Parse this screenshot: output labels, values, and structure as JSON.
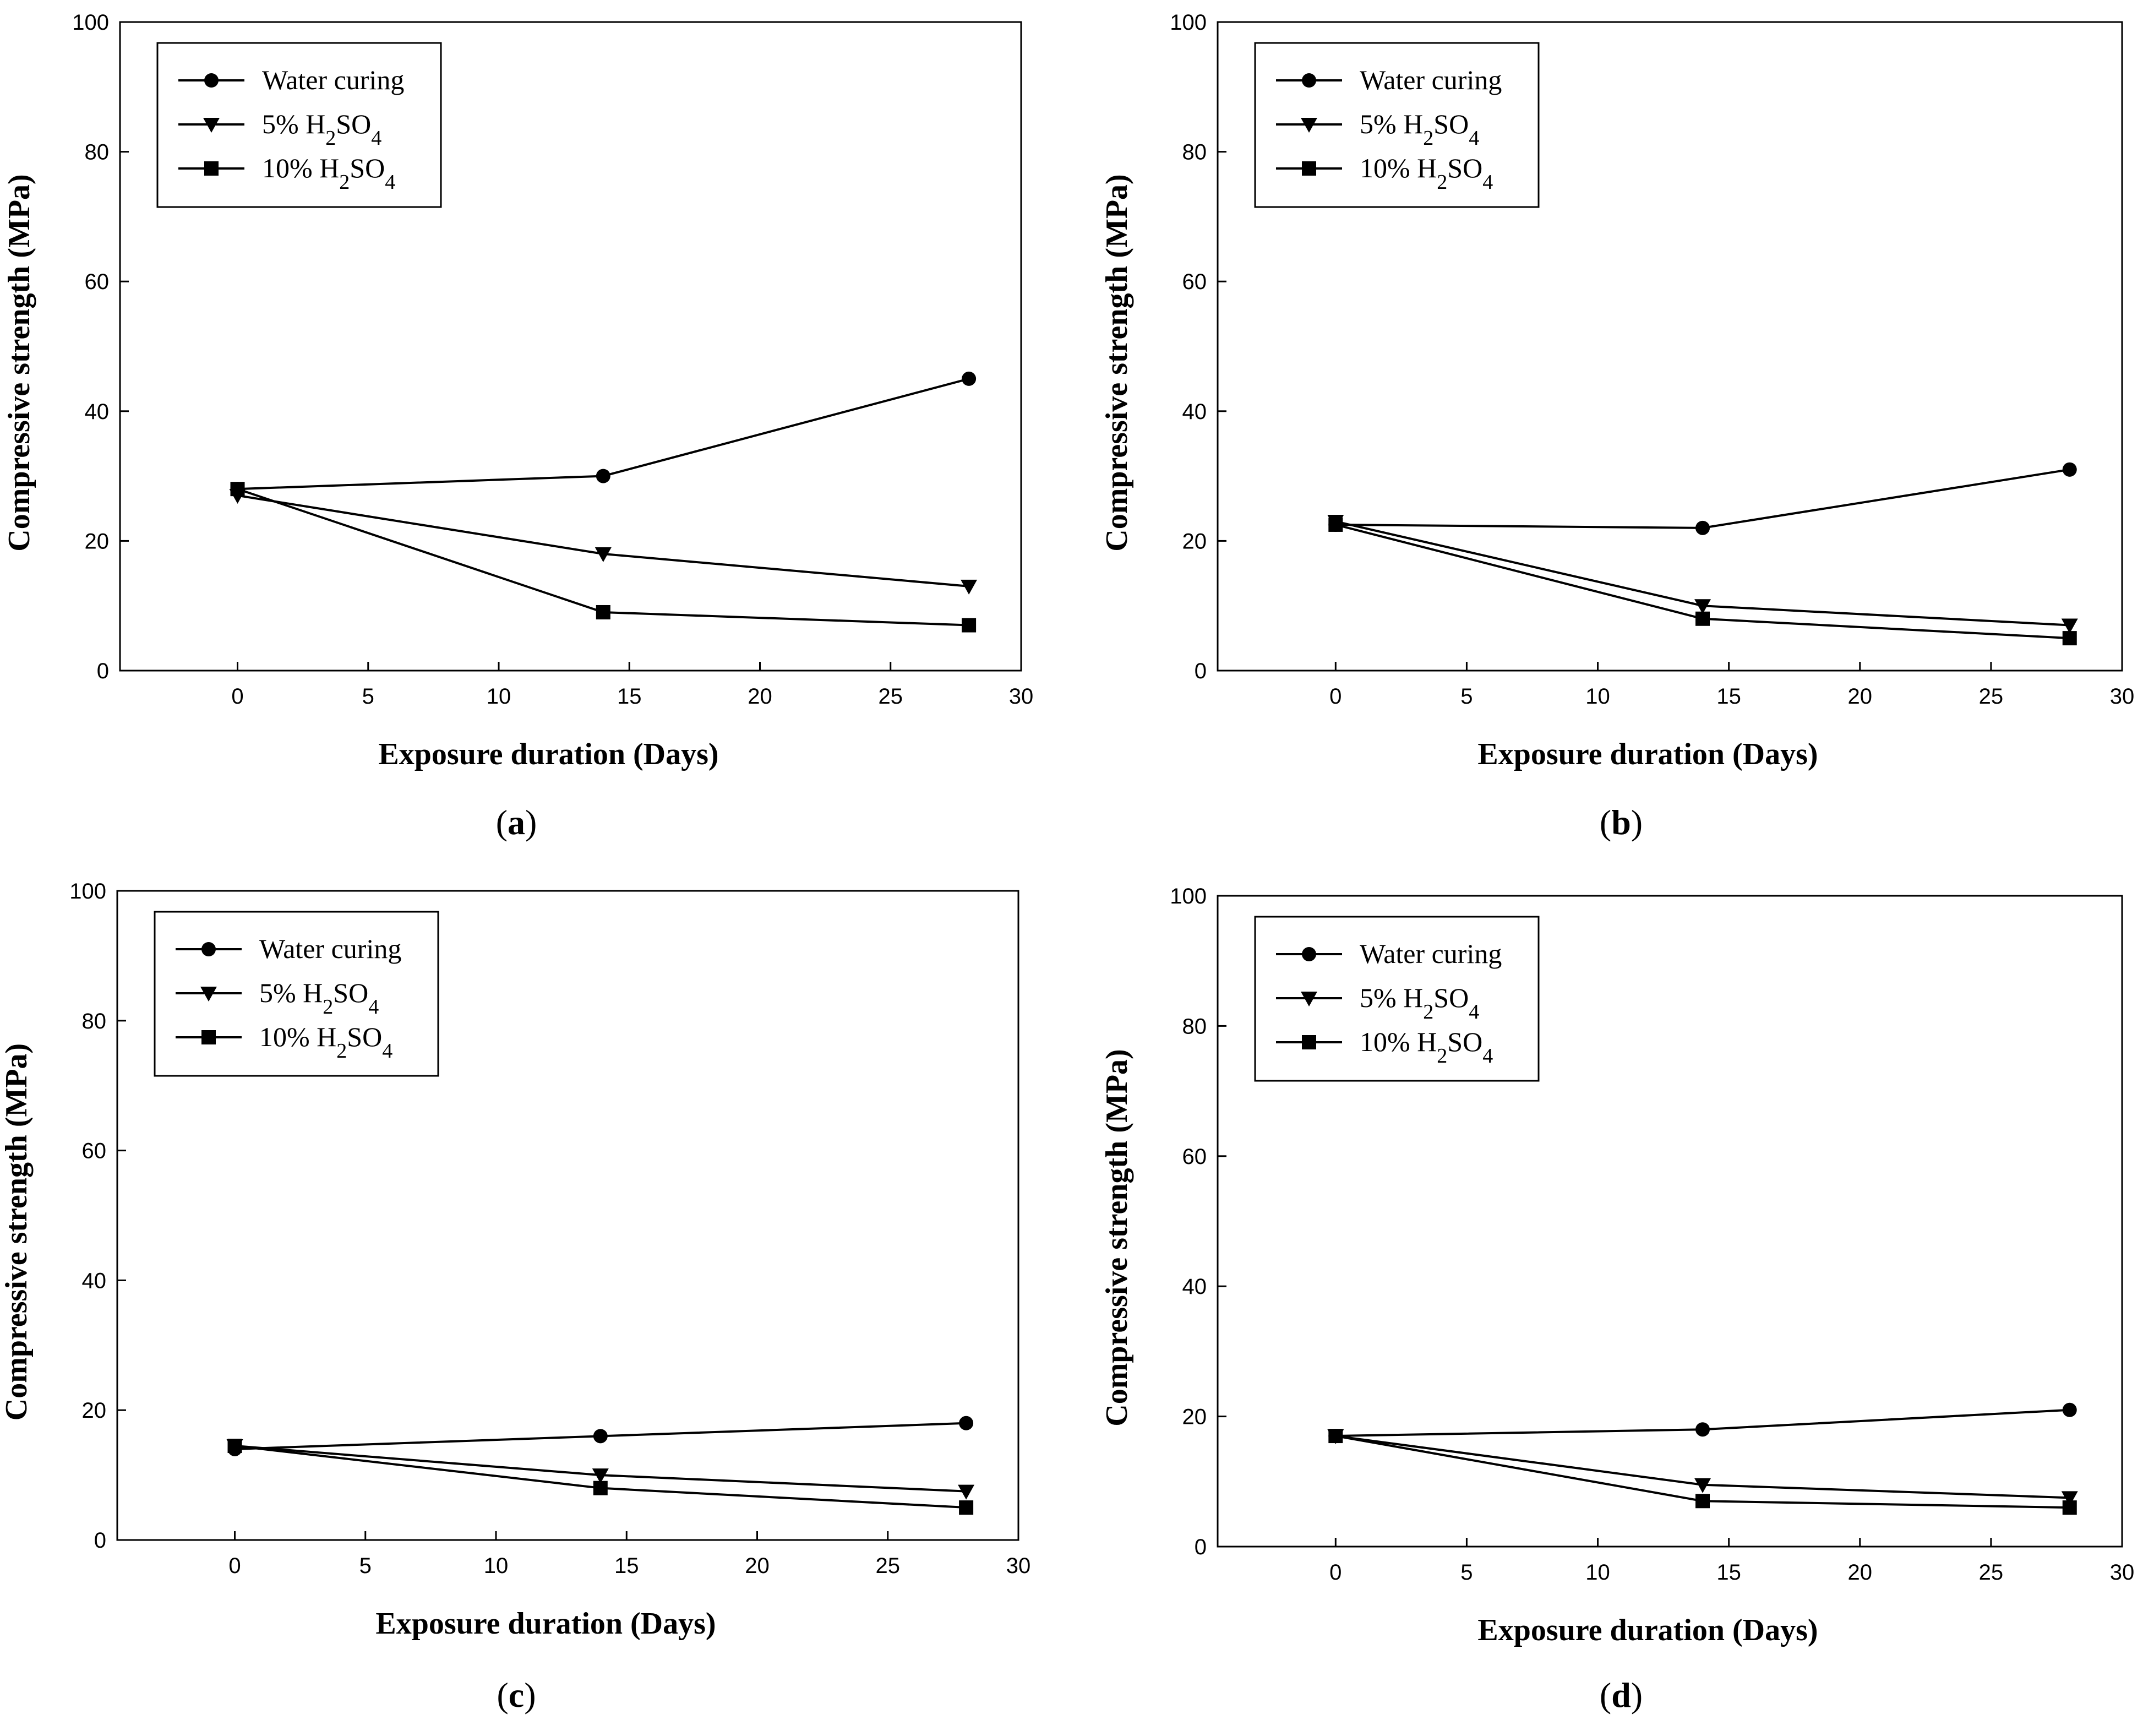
{
  "chart_data": [
    {
      "type": "line",
      "panel_label": "a",
      "xlabel": "Exposure duration (Days)",
      "ylabel": "Compressive strength (MPa)",
      "xlim": [
        -4.5,
        30
      ],
      "ylim": [
        0,
        100
      ],
      "xticks": [
        0,
        5,
        10,
        15,
        20,
        25,
        30
      ],
      "yticks": [
        0,
        20,
        40,
        60,
        80,
        100
      ],
      "legend_position": "top-left",
      "grid": false,
      "x": [
        0,
        14,
        28
      ],
      "series": [
        {
          "name": "Water curing",
          "marker": "circle",
          "values": [
            28,
            30,
            45
          ]
        },
        {
          "name": "5% H2SO4",
          "marker": "triangle-down",
          "values": [
            27,
            18,
            13
          ]
        },
        {
          "name": "10% H2SO4",
          "marker": "square",
          "values": [
            28,
            9,
            7
          ]
        }
      ]
    },
    {
      "type": "line",
      "panel_label": "b",
      "xlabel": "Exposure duration (Days)",
      "ylabel": "Compressive strength (MPa)",
      "xlim": [
        -4.5,
        30
      ],
      "ylim": [
        0,
        100
      ],
      "xticks": [
        0,
        5,
        10,
        15,
        20,
        25,
        30
      ],
      "yticks": [
        0,
        20,
        40,
        60,
        80,
        100
      ],
      "legend_position": "top-left",
      "grid": false,
      "x": [
        0,
        14,
        28
      ],
      "series": [
        {
          "name": "Water curing",
          "marker": "circle",
          "values": [
            22.5,
            22,
            31
          ]
        },
        {
          "name": "5% H2SO4",
          "marker": "triangle-down",
          "values": [
            23,
            10,
            7
          ]
        },
        {
          "name": "10% H2SO4",
          "marker": "square",
          "values": [
            22.5,
            8,
            5
          ]
        }
      ]
    },
    {
      "type": "line",
      "panel_label": "c",
      "xlabel": "Exposure duration (Days)",
      "ylabel": "Compressive strength (MPa)",
      "xlim": [
        -4.5,
        30
      ],
      "ylim": [
        0,
        100
      ],
      "xticks": [
        0,
        5,
        10,
        15,
        20,
        25,
        30
      ],
      "yticks": [
        0,
        20,
        40,
        60,
        80,
        100
      ],
      "legend_position": "top-left",
      "grid": false,
      "x": [
        0,
        14,
        28
      ],
      "series": [
        {
          "name": "Water curing",
          "marker": "circle",
          "values": [
            14,
            16,
            18
          ]
        },
        {
          "name": "5% H2SO4",
          "marker": "triangle-down",
          "values": [
            14.5,
            10,
            7.5
          ]
        },
        {
          "name": "10% H2SO4",
          "marker": "square",
          "values": [
            14.5,
            8,
            5
          ]
        }
      ]
    },
    {
      "type": "line",
      "panel_label": "d",
      "xlabel": "Exposure duration (Days)",
      "ylabel": "Compressive strength (MPa)",
      "xlim": [
        -4.5,
        30
      ],
      "ylim": [
        0,
        100
      ],
      "xticks": [
        0,
        5,
        10,
        15,
        20,
        25,
        30
      ],
      "yticks": [
        0,
        20,
        40,
        60,
        80,
        100
      ],
      "legend_position": "top-left",
      "grid": false,
      "x": [
        0,
        14,
        28
      ],
      "series": [
        {
          "name": "Water curing",
          "marker": "circle",
          "values": [
            17,
            18,
            21
          ]
        },
        {
          "name": "5% H2SO4",
          "marker": "triangle-down",
          "values": [
            17,
            9.5,
            7.5
          ]
        },
        {
          "name": "10% H2SO4",
          "marker": "square",
          "values": [
            17,
            7,
            6
          ]
        }
      ]
    }
  ]
}
